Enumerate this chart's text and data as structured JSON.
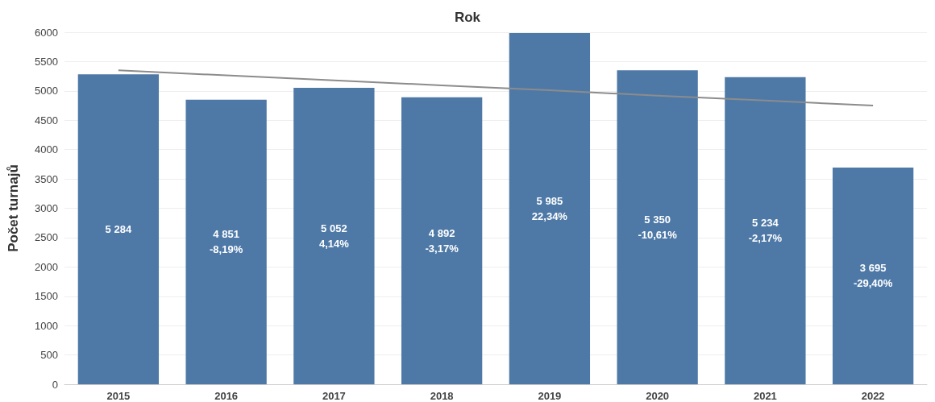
{
  "chart_data": {
    "type": "bar",
    "xlabel": "Rok",
    "ylabel": "Počet turnajů",
    "categories": [
      "2015",
      "2016",
      "2017",
      "2018",
      "2019",
      "2020",
      "2021",
      "2022"
    ],
    "series": [
      {
        "color": "#4e79a7",
        "values": [
          5284,
          4851,
          5052,
          4892,
          5985,
          5350,
          5234,
          3695
        ],
        "value_labels": [
          "5 284",
          "4 851\n-8,19%",
          "5 052\n4,14%",
          "4 892\n-3,17%",
          "5 985\n22,34%",
          "5 350\n-10,61%",
          "5 234\n-2,17%",
          "3 695\n-29,40%"
        ]
      },
      {
        "type": "line",
        "color": "#8c8c8c",
        "values": [
          5350,
          5265,
          5180,
          5095,
          5010,
          4920,
          4835,
          4750
        ],
        "marker": "none"
      }
    ],
    "ylim": [
      0,
      6000
    ],
    "yticks": [
      0,
      500,
      1000,
      1500,
      2000,
      2500,
      3000,
      3500,
      4000,
      4500,
      5000,
      5500,
      6000
    ],
    "grid": "y"
  }
}
